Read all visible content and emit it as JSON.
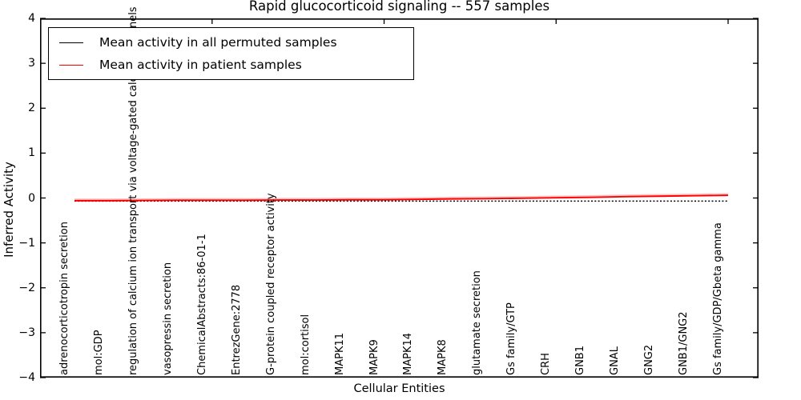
{
  "figure": {
    "background": "#ffffff",
    "text_color": "#000000"
  },
  "axes": {
    "y_tick_labels": [
      "4",
      "3",
      "2",
      "1",
      "0",
      "−1",
      "−2",
      "−3",
      "−4"
    ],
    "x_major_tick_indices": [
      4,
      9,
      14,
      19
    ],
    "tick_direction": "in"
  },
  "chart_data": {
    "type": "line",
    "title": "Rapid glucocorticoid signaling -- 557 samples",
    "xlabel": "Cellular Entities",
    "ylabel": "Inferred Activity",
    "ylim": [
      -4,
      4
    ],
    "grid": false,
    "legend_position": "upper left",
    "x_tick_label_rotation": "vertical",
    "categories": [
      "adrenocorticotropin secretion",
      "mol:GDP",
      "regulation of calcium ion transport via voltage-gated calcium channels",
      "vasopressin secretion",
      "ChemicalAbstracts:86-01-1",
      "EntrezGene:2778",
      "G-protein coupled receptor activity",
      "mol:cortisol",
      "MAPK11",
      "MAPK9",
      "MAPK14",
      "MAPK8",
      "glutamate secretion",
      "Gs family/GTP",
      "CRH",
      "GNB1",
      "GNAL",
      "GNG2",
      "GNB1/GNG2",
      "Gs family/GDP/Gbeta gamma"
    ],
    "series": [
      {
        "name": "Mean activity in all permuted samples",
        "color": "#000000",
        "line_style": "dotted",
        "values": [
          -0.07,
          -0.07,
          -0.07,
          -0.07,
          -0.07,
          -0.07,
          -0.07,
          -0.07,
          -0.07,
          -0.07,
          -0.07,
          -0.07,
          -0.07,
          -0.07,
          -0.07,
          -0.07,
          -0.07,
          -0.07,
          -0.07,
          -0.07
        ]
      },
      {
        "name": "Mean activity in patient samples",
        "color": "#ff0000",
        "line_style": "solid",
        "values": [
          -0.06,
          -0.06,
          -0.055,
          -0.05,
          -0.05,
          -0.05,
          -0.045,
          -0.045,
          -0.04,
          -0.04,
          -0.03,
          -0.02,
          -0.015,
          -0.005,
          0.005,
          0.015,
          0.03,
          0.04,
          0.05,
          0.06
        ]
      }
    ]
  }
}
